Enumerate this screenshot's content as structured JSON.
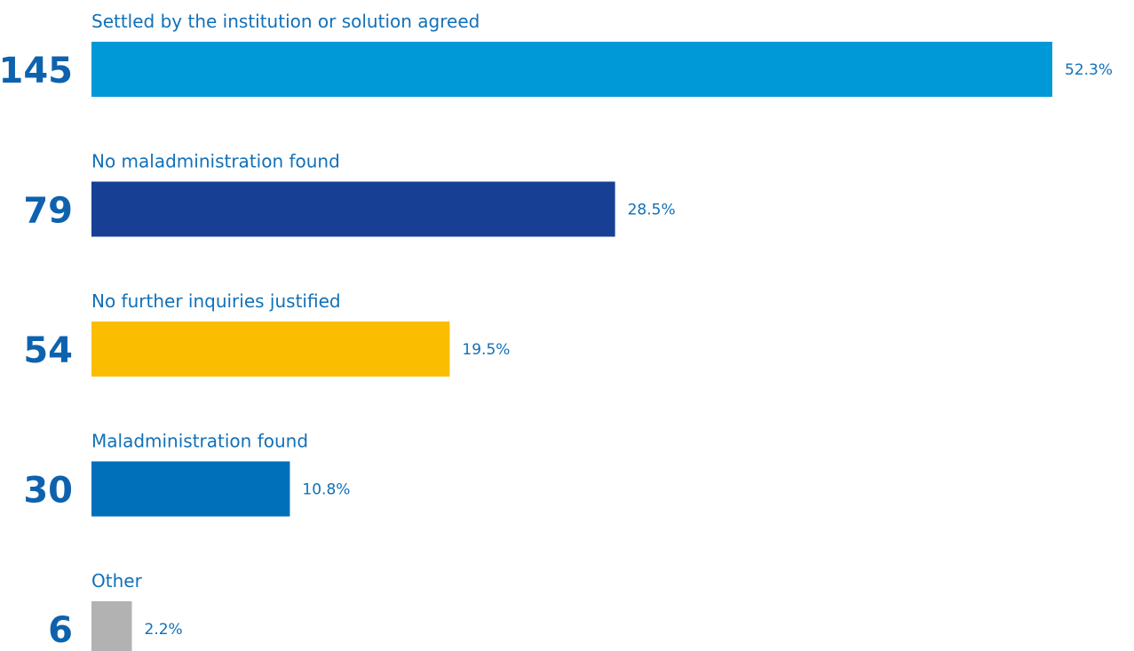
{
  "chart_data": {
    "type": "bar",
    "orientation": "horizontal",
    "categories": [
      "Settled by the institution or solution agreed",
      "No maladministration found",
      "No further inquiries justified",
      "Maladministration found",
      "Other"
    ],
    "counts": [
      145,
      79,
      54,
      30,
      6
    ],
    "values": [
      52.3,
      28.5,
      19.5,
      10.8,
      2.2
    ],
    "value_labels": [
      "52.3%",
      "28.5%",
      "19.5%",
      "10.8%",
      "2.2%"
    ],
    "colors": [
      "#0099d8",
      "#173f94",
      "#fbbd00",
      "#0070bb",
      "#b2b2b2"
    ]
  }
}
